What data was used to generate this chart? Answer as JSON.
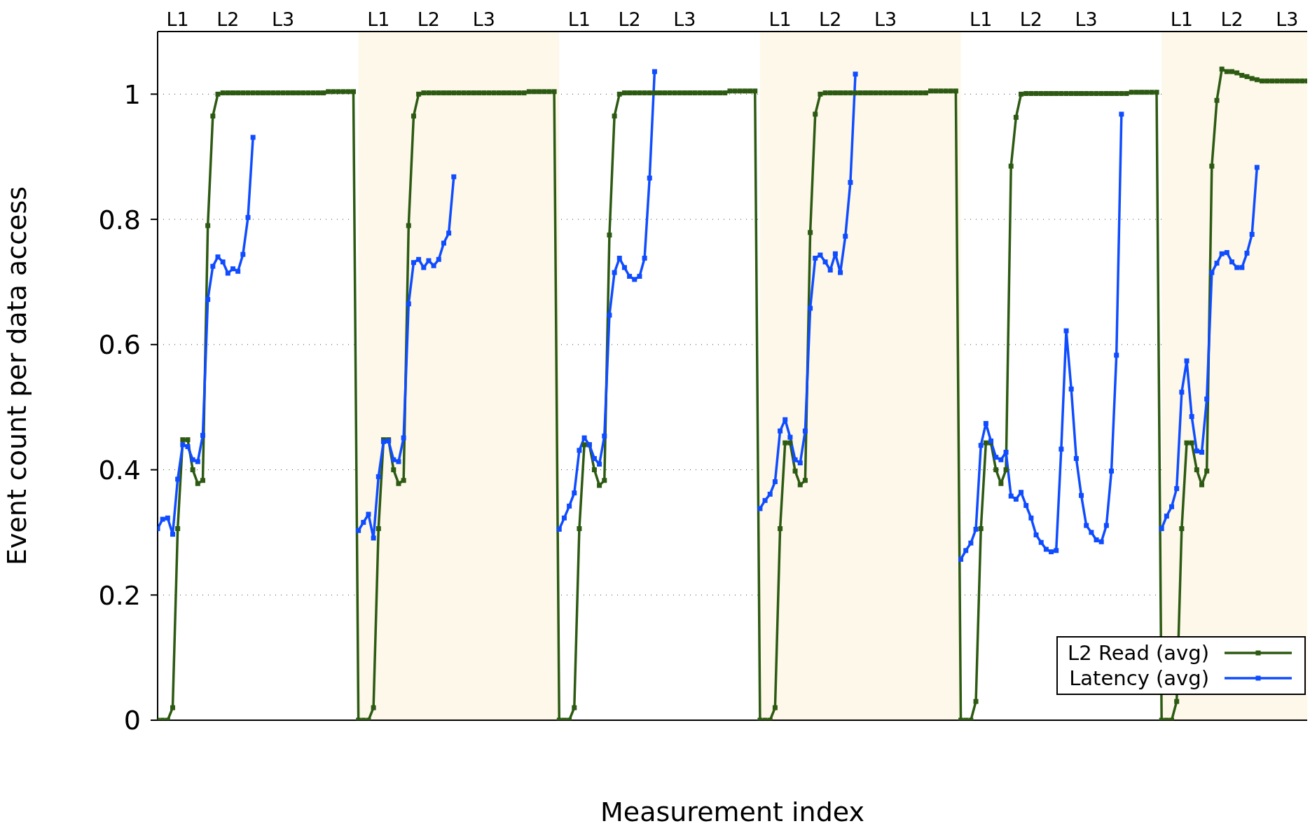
{
  "chart_data": {
    "type": "line",
    "xlabel": "Measurement index",
    "ylabel": "Event count per data access",
    "categories": [
      null,
      null,
      null,
      null,
      "L1",
      null,
      null,
      null,
      null,
      null,
      null,
      null,
      null,
      null,
      "L2",
      null,
      null,
      null,
      null,
      null,
      null,
      null,
      null,
      null,
      null,
      "L3",
      null,
      null,
      null,
      null,
      null,
      null,
      null,
      null,
      null,
      null,
      null,
      null,
      null,
      null,
      null,
      null,
      null,
      null,
      "L1",
      null,
      null,
      null,
      null,
      null,
      null,
      null,
      null,
      null,
      "L2",
      null,
      null,
      null,
      null,
      null,
      null,
      null,
      null,
      null,
      null,
      "L3",
      null,
      null,
      null,
      null,
      null,
      null,
      null,
      null,
      null,
      null,
      null,
      null,
      null,
      null,
      null,
      null,
      null,
      null,
      "L1",
      null,
      null,
      null,
      null,
      null,
      null,
      null,
      null,
      null,
      "L2",
      null,
      null,
      null,
      null,
      null,
      null,
      null,
      null,
      null,
      null,
      "L3",
      null,
      null,
      null,
      null,
      null,
      null,
      null,
      null,
      null,
      null,
      null,
      null,
      null,
      null,
      null,
      null,
      null,
      null,
      "L1",
      null,
      null,
      null,
      null,
      null,
      null,
      null,
      null,
      null,
      "L2",
      null,
      null,
      null,
      null,
      null,
      null,
      null,
      null,
      null,
      null,
      "L3",
      null,
      null,
      null,
      null,
      null,
      null,
      null,
      null,
      null,
      null,
      null,
      null,
      null,
      null,
      null,
      null,
      null,
      null,
      "L1",
      null,
      null,
      null,
      null,
      null,
      null,
      null,
      null,
      null,
      "L2",
      null,
      null,
      null,
      null,
      null,
      null,
      null,
      null,
      null,
      null,
      "L3",
      null,
      null,
      null,
      null,
      null,
      null,
      null,
      null,
      null,
      null,
      null,
      null,
      null,
      null,
      null,
      null,
      null,
      null,
      "L1",
      null,
      null,
      null,
      null,
      null,
      null,
      null,
      null,
      null,
      "L2",
      null,
      null,
      null,
      null,
      null,
      null,
      null,
      null,
      null,
      null,
      "L3",
      null,
      null,
      null,
      null
    ],
    "series": [
      {
        "name": "L2 Read (avg)",
        "color": "#2d5a12",
        "values": [
          0,
          0,
          0,
          0.02,
          0.306,
          0.448,
          0.448,
          0.4,
          0.378,
          0.383,
          0.79,
          0.965,
          1,
          1.002,
          1.002,
          1.002,
          1.002,
          1.002,
          1.002,
          1.002,
          1.002,
          1.002,
          1.002,
          1.002,
          1.002,
          1.002,
          1.002,
          1.002,
          1.002,
          1.002,
          1.002,
          1.002,
          1.002,
          1.002,
          1.004,
          1.004,
          1.004,
          1.004,
          1.004,
          1.004,
          0,
          0,
          0,
          0.02,
          0.306,
          0.448,
          0.448,
          0.4,
          0.378,
          0.383,
          0.79,
          0.965,
          1,
          1.002,
          1.002,
          1.002,
          1.002,
          1.002,
          1.002,
          1.002,
          1.002,
          1.002,
          1.002,
          1.002,
          1.002,
          1.002,
          1.002,
          1.002,
          1.002,
          1.002,
          1.002,
          1.002,
          1.002,
          1.002,
          1.004,
          1.004,
          1.004,
          1.004,
          1.004,
          1.004,
          0,
          0,
          0,
          0.02,
          0.306,
          0.44,
          0.44,
          0.4,
          0.375,
          0.383,
          0.775,
          0.965,
          1,
          1.002,
          1.002,
          1.002,
          1.002,
          1.002,
          1.002,
          1.002,
          1.002,
          1.002,
          1.002,
          1.002,
          1.002,
          1.002,
          1.002,
          1.002,
          1.002,
          1.002,
          1.002,
          1.002,
          1.002,
          1.002,
          1.005,
          1.005,
          1.005,
          1.005,
          1.005,
          1.005,
          0,
          0,
          0,
          0.02,
          0.306,
          0.443,
          0.443,
          0.398,
          0.376,
          0.383,
          0.779,
          0.968,
          1,
          1.002,
          1.002,
          1.002,
          1.002,
          1.002,
          1.002,
          1.002,
          1.002,
          1.002,
          1.002,
          1.002,
          1.002,
          1.002,
          1.002,
          1.002,
          1.002,
          1.002,
          1.002,
          1.002,
          1.002,
          1.002,
          1.005,
          1.005,
          1.005,
          1.005,
          1.005,
          1.005,
          0,
          0,
          0,
          0.03,
          0.306,
          0.443,
          0.443,
          0.4,
          0.378,
          0.4,
          0.885,
          0.963,
          1,
          1.001,
          1.001,
          1.001,
          1.001,
          1.001,
          1.001,
          1.001,
          1.001,
          1.001,
          1.001,
          1.001,
          1.001,
          1.001,
          1.001,
          1.001,
          1.001,
          1.001,
          1.001,
          1.001,
          1.001,
          1.001,
          1.003,
          1.003,
          1.003,
          1.003,
          1.003,
          1.003,
          0,
          0,
          0,
          0.03,
          0.306,
          0.443,
          0.443,
          0.4,
          0.376,
          0.398,
          0.885,
          0.99,
          1.04,
          1.036,
          1.036,
          1.034,
          1.03,
          1.028,
          1.025,
          1.023,
          1.021,
          1.021,
          1.021,
          1.021,
          1.021,
          1.021,
          1.021,
          1.021,
          1.021,
          1.021
        ]
      },
      {
        "name": "Latency (avg)",
        "color": "#0f4cff",
        "values": [
          0.306,
          0.321,
          0.323,
          0.297,
          0.385,
          0.44,
          0.437,
          0.416,
          0.413,
          0.455,
          0.672,
          0.725,
          0.74,
          0.732,
          0.714,
          0.721,
          0.717,
          0.744,
          0.803,
          0.931,
          null,
          null,
          null,
          null,
          null,
          null,
          null,
          null,
          null,
          null,
          null,
          null,
          null,
          null,
          null,
          null,
          null,
          null,
          null,
          null,
          0.303,
          0.316,
          0.329,
          0.291,
          0.389,
          0.445,
          0.446,
          0.416,
          0.413,
          0.451,
          0.665,
          0.731,
          0.736,
          0.723,
          0.734,
          0.726,
          0.736,
          0.762,
          0.778,
          0.868,
          null,
          null,
          null,
          null,
          null,
          null,
          null,
          null,
          null,
          null,
          null,
          null,
          null,
          null,
          null,
          null,
          null,
          null,
          null,
          null,
          0.305,
          0.323,
          0.342,
          0.363,
          0.431,
          0.451,
          0.44,
          0.418,
          0.409,
          0.454,
          0.647,
          0.715,
          0.738,
          0.723,
          0.709,
          0.704,
          0.709,
          0.738,
          0.866,
          1.036,
          null,
          null,
          null,
          null,
          null,
          null,
          null,
          null,
          null,
          null,
          null,
          null,
          null,
          null,
          null,
          null,
          null,
          null,
          null,
          null,
          0.338,
          0.351,
          0.361,
          0.381,
          0.462,
          0.48,
          0.452,
          0.416,
          0.411,
          0.462,
          0.658,
          0.738,
          0.743,
          0.732,
          0.719,
          0.745,
          0.715,
          0.773,
          0.859,
          1.032,
          null,
          null,
          null,
          null,
          null,
          null,
          null,
          null,
          null,
          null,
          null,
          null,
          null,
          null,
          null,
          null,
          null,
          null,
          null,
          null,
          0.257,
          0.271,
          0.283,
          0.305,
          0.439,
          0.474,
          0.446,
          0.42,
          0.416,
          0.428,
          0.358,
          0.353,
          0.364,
          0.343,
          0.323,
          0.296,
          0.284,
          0.273,
          0.269,
          0.271,
          0.433,
          0.622,
          0.529,
          0.418,
          0.359,
          0.311,
          0.3,
          0.288,
          0.285,
          0.311,
          0.398,
          0.583,
          0.968,
          null,
          null,
          null,
          null,
          null,
          null,
          null,
          0.306,
          0.326,
          0.341,
          0.37,
          0.524,
          0.574,
          0.485,
          0.43,
          0.428,
          0.513,
          0.715,
          0.73,
          0.745,
          0.747,
          0.732,
          0.723,
          0.723,
          0.746,
          0.776,
          0.883,
          null,
          null,
          null,
          null,
          null,
          null,
          null,
          null,
          null,
          null
        ]
      }
    ],
    "ylim": [
      0,
      1.1
    ],
    "yticks": [
      0,
      0.2,
      0.4,
      0.6,
      0.8,
      1
    ],
    "grid": "y",
    "legend": "bottom right",
    "marker": "square",
    "line_style": "solid"
  }
}
